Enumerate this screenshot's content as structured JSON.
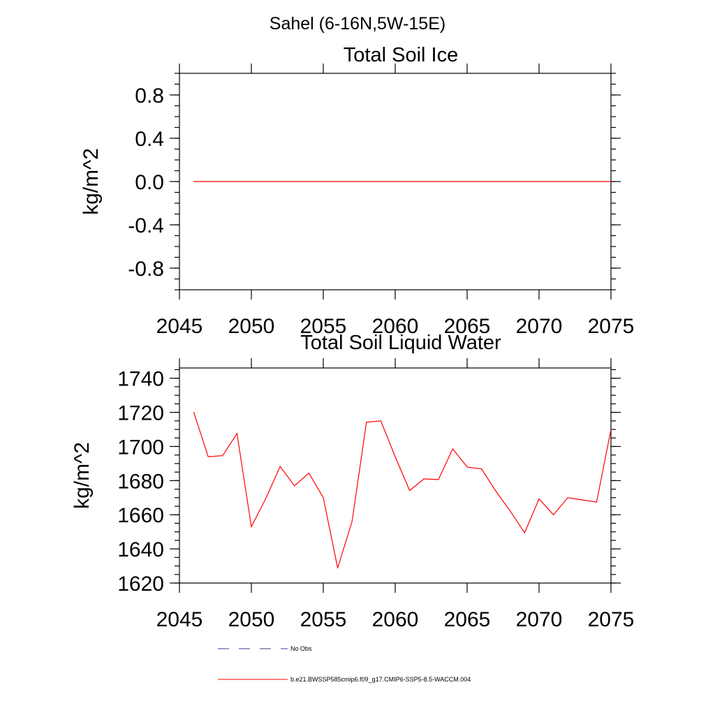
{
  "figure_title": "Sahel (6-16N,5W-15E)",
  "colors": {
    "series": "#ff0000",
    "obs": "#3a3a8c",
    "axes": "#000000"
  },
  "chart_data": [
    {
      "type": "line",
      "title": "Total Soil Ice",
      "xlabel": "",
      "ylabel": "kg/m^2",
      "xlim": [
        2045,
        2075
      ],
      "ylim": [
        -1.0,
        1.0
      ],
      "x_ticks": [
        2045,
        2050,
        2055,
        2060,
        2065,
        2070,
        2075
      ],
      "y_ticks": [
        -0.8,
        -0.4,
        0.0,
        0.4,
        0.8
      ],
      "y_tick_labels": [
        "-0.8",
        "-0.4",
        "0.0",
        "0.4",
        "0.8"
      ],
      "y_minor_step": 0.1,
      "series": [
        {
          "name": "b.e21.BWSSP585cmip6.f09_g17.CMIP6-SSP5-8.5-WACCM.004",
          "x": [
            2046,
            2047,
            2048,
            2049,
            2050,
            2051,
            2052,
            2053,
            2054,
            2055,
            2056,
            2057,
            2058,
            2059,
            2060,
            2061,
            2062,
            2063,
            2064,
            2065,
            2066,
            2067,
            2068,
            2069,
            2070,
            2071,
            2072,
            2073,
            2074,
            2075
          ],
          "values": [
            0,
            0,
            0,
            0,
            0,
            0,
            0,
            0,
            0,
            0,
            0,
            0,
            0,
            0,
            0,
            0,
            0,
            0,
            0,
            0,
            0,
            0,
            0,
            0,
            0,
            0,
            0,
            0,
            0,
            0
          ]
        }
      ]
    },
    {
      "type": "line",
      "title": "Total Soil Liquid Water",
      "xlabel": "",
      "ylabel": "kg/m^2",
      "xlim": [
        2045,
        2075
      ],
      "ylim": [
        1620,
        1746
      ],
      "x_ticks": [
        2045,
        2050,
        2055,
        2060,
        2065,
        2070,
        2075
      ],
      "y_ticks": [
        1620,
        1640,
        1660,
        1680,
        1700,
        1720,
        1740
      ],
      "y_tick_labels": [
        "1620",
        "1640",
        "1660",
        "1680",
        "1700",
        "1720",
        "1740"
      ],
      "y_minor_step": 5,
      "series": [
        {
          "name": "b.e21.BWSSP585cmip6.f09_g17.CMIP6-SSP5-8.5-WACCM.004",
          "x": [
            2046,
            2047,
            2048,
            2049,
            2050,
            2051,
            2052,
            2053,
            2054,
            2055,
            2056,
            2057,
            2058,
            2059,
            2060,
            2061,
            2062,
            2063,
            2064,
            2065,
            2066,
            2067,
            2068,
            2069,
            2070,
            2071,
            2072,
            2073,
            2074,
            2075
          ],
          "values": [
            1720.0,
            1694.0,
            1694.6,
            1707.6,
            1653.0,
            1669.5,
            1688.3,
            1677.0,
            1684.4,
            1670.0,
            1628.8,
            1656.1,
            1714.2,
            1715.0,
            1694.0,
            1674.2,
            1681.0,
            1680.6,
            1698.6,
            1688.0,
            1686.9,
            1673.8,
            1662.1,
            1649.5,
            1669.3,
            1660.0,
            1670.0,
            1668.7,
            1667.4,
            1710.0
          ]
        }
      ]
    }
  ],
  "legend": [
    {
      "label": "No Obs",
      "style": "dashed",
      "color": "#3a3a8c"
    },
    {
      "label": "b.e21.BWSSP585cmip6.f09_g17.CMIP6-SSP5-8.5-WACCM.004",
      "style": "solid",
      "color": "#ff0000"
    }
  ]
}
